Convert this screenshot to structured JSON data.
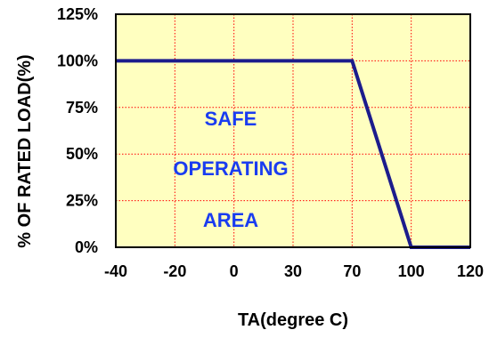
{
  "chart_data": {
    "type": "line",
    "title": "",
    "xlabel": "TA(degree C)",
    "ylabel": "% OF RATED LOAD(%)",
    "categories": [
      "-40",
      "-20",
      "0",
      "30",
      "70",
      "100",
      "120"
    ],
    "y_tick_labels": [
      "0%",
      "25%",
      "50%",
      "75%",
      "100%",
      "125%"
    ],
    "ylim": [
      0,
      125
    ],
    "grid": true,
    "legend": "none",
    "plot_background": "#ffffc0",
    "grid_color": "#ff0000",
    "series": [
      {
        "color": "#1c1c8c",
        "points": [
          {
            "x": "-40",
            "y": 100
          },
          {
            "x": "70",
            "y": 100
          },
          {
            "x": "100",
            "y": 0
          },
          {
            "x": "120",
            "y": 0
          }
        ]
      }
    ],
    "annotations": [
      {
        "text": "SAFE",
        "color": "#1a3cf0"
      },
      {
        "text": "OPERATING",
        "color": "#1a3cf0"
      },
      {
        "text": "AREA",
        "color": "#1a3cf0"
      }
    ]
  }
}
